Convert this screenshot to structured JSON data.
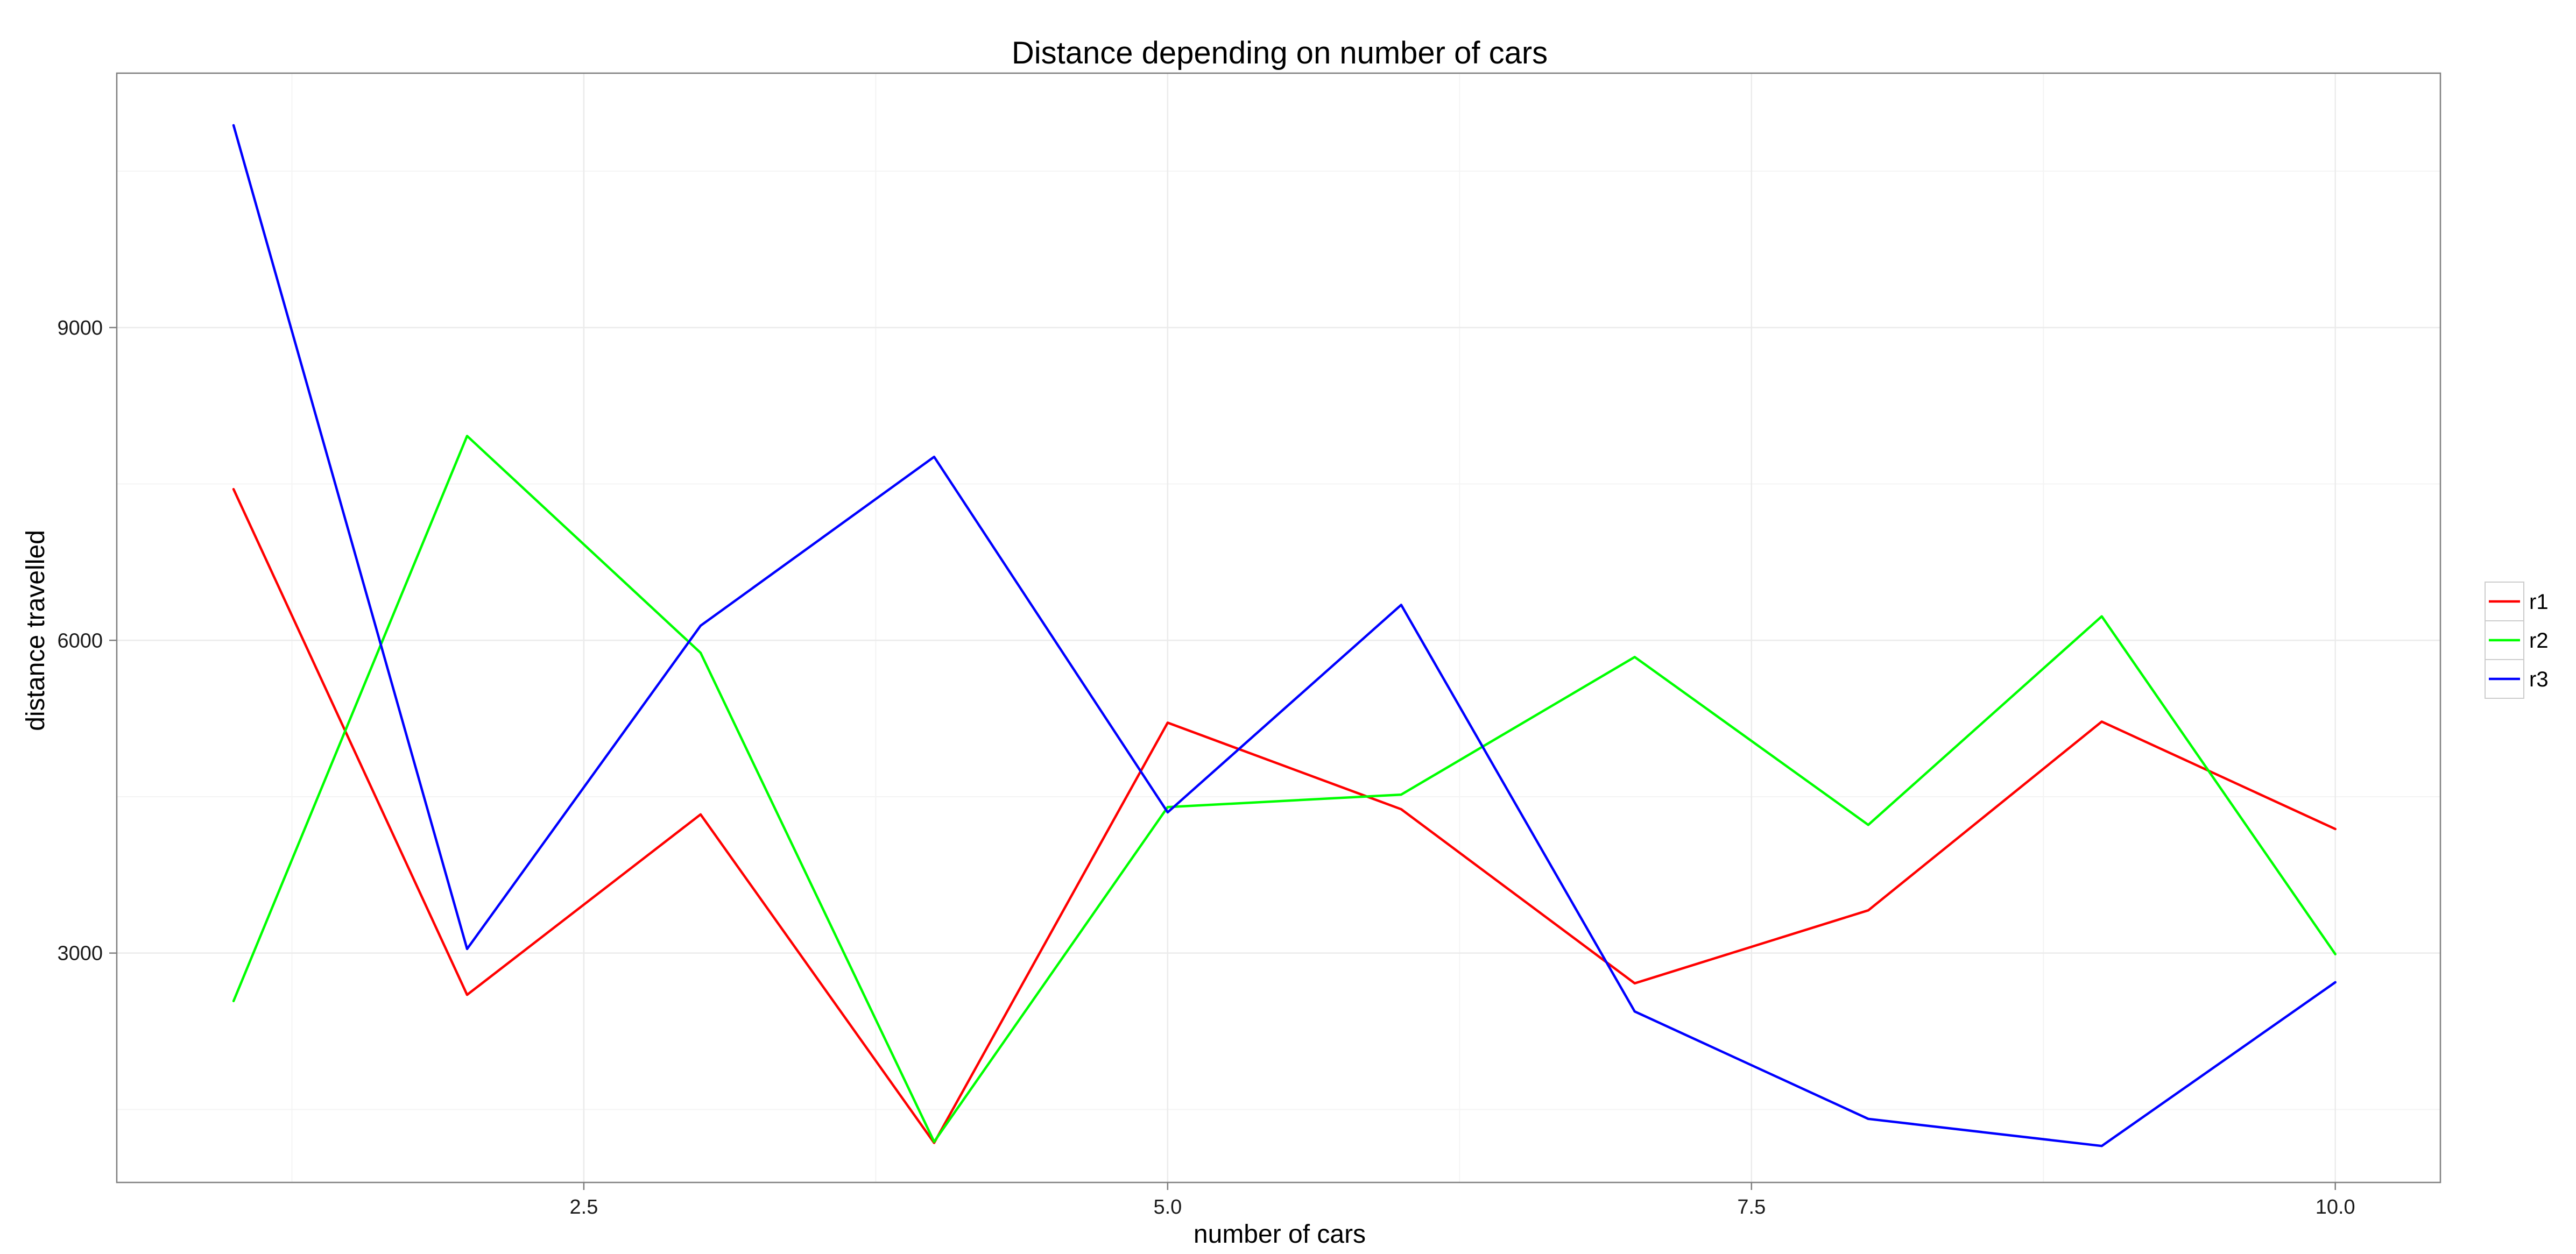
{
  "chart_data": {
    "type": "line",
    "title": "Distance depending on number of cars",
    "xlabel": "number of cars",
    "ylabel": "distance travelled",
    "x": [
      1,
      2,
      3,
      4,
      5,
      6,
      7,
      8,
      9,
      10
    ],
    "series": [
      {
        "name": "r1",
        "color": "#ff0000",
        "values": [
          7450,
          2600,
          4330,
          1180,
          5210,
          4380,
          2710,
          3410,
          5220,
          4190
        ]
      },
      {
        "name": "r2",
        "color": "#00ff00",
        "values": [
          2540,
          7960,
          5880,
          1190,
          4400,
          4520,
          5840,
          4230,
          6230,
          2990
        ]
      },
      {
        "name": "r3",
        "color": "#0000ff",
        "values": [
          10940,
          3040,
          6140,
          7760,
          4350,
          6340,
          2440,
          1410,
          1150,
          2720
        ]
      }
    ],
    "xlim": [
      0.5,
      10.45
    ],
    "ylim": [
      800,
      11440
    ],
    "xticks": [
      2.5,
      5.0,
      7.5,
      10.0
    ],
    "xtick_labels": [
      "2.5",
      "5.0",
      "7.5",
      "10.0"
    ],
    "yticks": [
      3000,
      6000,
      9000
    ],
    "ytick_labels": [
      "3000",
      "6000",
      "9000"
    ],
    "grid": true,
    "legend_position": "right"
  }
}
